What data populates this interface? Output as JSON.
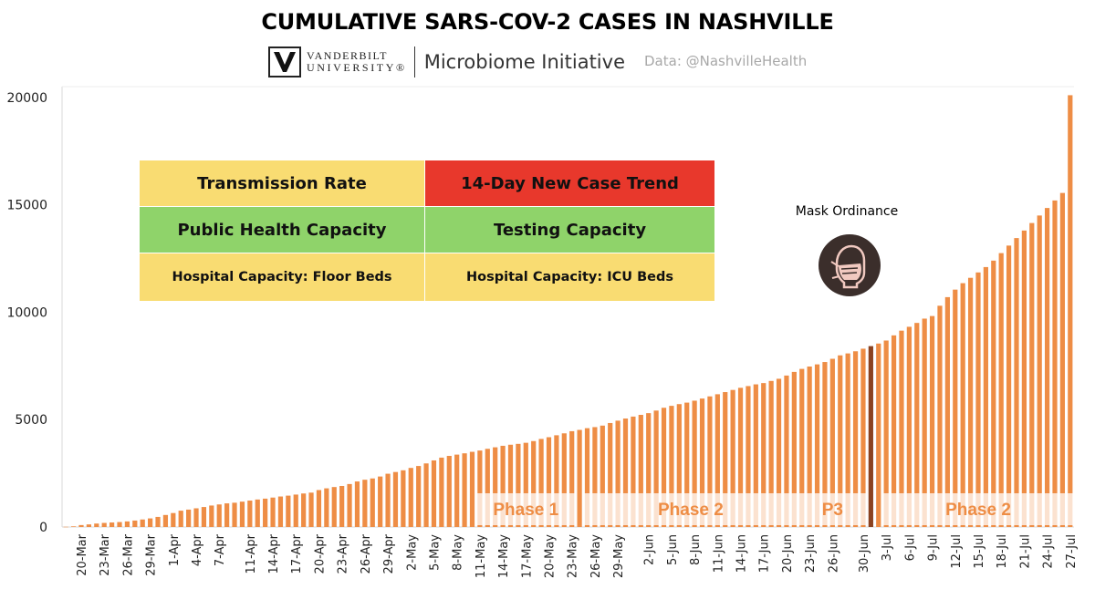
{
  "header": {
    "title": "CUMULATIVE SARS-COV-2 CASES IN NASHVILLE",
    "logo_line1": "VANDERBILT",
    "logo_line2": "UNIVERSITY®",
    "initiative": "Microbiome Initiative",
    "source": "Data: @NashvilleHealth"
  },
  "indicators": [
    {
      "label": "Transmission Rate",
      "status_color": "#f9dc72",
      "size": "big"
    },
    {
      "label": "14-Day New Case Trend",
      "status_color": "#e8382c",
      "size": "big"
    },
    {
      "label": "Public Health Capacity",
      "status_color": "#8fd36a",
      "size": "big"
    },
    {
      "label": "Testing Capacity",
      "status_color": "#8fd36a",
      "size": "big"
    },
    {
      "label": "Hospital Capacity: Floor Beds",
      "status_color": "#f9dc72",
      "size": "small"
    },
    {
      "label": "Hospital Capacity: ICU Beds",
      "status_color": "#f9dc72",
      "size": "small"
    }
  ],
  "annotation": {
    "label": "Mask Ordinance",
    "icon": "mask-icon",
    "date": "1-Jul"
  },
  "chart_data": {
    "type": "bar",
    "title": "CUMULATIVE SARS-COV-2 CASES IN NASHVILLE",
    "xlabel": "",
    "ylabel": "",
    "ylim": [
      0,
      20500
    ],
    "yticks": [
      0,
      5000,
      10000,
      15000,
      20000
    ],
    "bar_color": "#ee8d45",
    "highlight_color": "#8b4220",
    "highlight_date": "1-Jul",
    "start_date": "2020-03-18",
    "end_date": "2020-07-27",
    "x_tick_labels": [
      "20-Mar",
      "23-Mar",
      "26-Mar",
      "29-Mar",
      "1-Apr",
      "4-Apr",
      "7-Apr",
      "11-Apr",
      "14-Apr",
      "17-Apr",
      "20-Apr",
      "23-Apr",
      "26-Apr",
      "29-Apr",
      "2-May",
      "5-May",
      "8-May",
      "11-May",
      "14-May",
      "17-May",
      "20-May",
      "23-May",
      "26-May",
      "29-May",
      "2-Jun",
      "5-Jun",
      "8-Jun",
      "11-Jun",
      "14-Jun",
      "17-Jun",
      "20-Jun",
      "23-Jun",
      "26-Jun",
      "30-Jun",
      "3-Jul",
      "6-Jul",
      "9-Jul",
      "12-Jul",
      "15-Jul",
      "18-Jul",
      "21-Jul",
      "24-Jul",
      "27-Jul"
    ],
    "points": [
      [
        "18-Mar",
        10
      ],
      [
        "19-Mar",
        30
      ],
      [
        "20-Mar",
        90
      ],
      [
        "21-Mar",
        120
      ],
      [
        "22-Mar",
        160
      ],
      [
        "23-Mar",
        190
      ],
      [
        "24-Mar",
        210
      ],
      [
        "25-Mar",
        230
      ],
      [
        "26-Mar",
        260
      ],
      [
        "27-Mar",
        300
      ],
      [
        "28-Mar",
        350
      ],
      [
        "29-Mar",
        400
      ],
      [
        "30-Mar",
        470
      ],
      [
        "31-Mar",
        560
      ],
      [
        "1-Apr",
        650
      ],
      [
        "2-Apr",
        760
      ],
      [
        "3-Apr",
        810
      ],
      [
        "4-Apr",
        870
      ],
      [
        "5-Apr",
        930
      ],
      [
        "6-Apr",
        1000
      ],
      [
        "7-Apr",
        1050
      ],
      [
        "8-Apr",
        1100
      ],
      [
        "9-Apr",
        1130
      ],
      [
        "10-Apr",
        1180
      ],
      [
        "11-Apr",
        1230
      ],
      [
        "12-Apr",
        1280
      ],
      [
        "13-Apr",
        1320
      ],
      [
        "14-Apr",
        1370
      ],
      [
        "15-Apr",
        1420
      ],
      [
        "16-Apr",
        1460
      ],
      [
        "17-Apr",
        1510
      ],
      [
        "18-Apr",
        1560
      ],
      [
        "19-Apr",
        1600
      ],
      [
        "20-Apr",
        1720
      ],
      [
        "21-Apr",
        1800
      ],
      [
        "22-Apr",
        1860
      ],
      [
        "23-Apr",
        1910
      ],
      [
        "24-Apr",
        2000
      ],
      [
        "25-Apr",
        2120
      ],
      [
        "26-Apr",
        2200
      ],
      [
        "27-Apr",
        2260
      ],
      [
        "28-Apr",
        2350
      ],
      [
        "29-Apr",
        2480
      ],
      [
        "30-Apr",
        2560
      ],
      [
        "1-May",
        2640
      ],
      [
        "2-May",
        2750
      ],
      [
        "3-May",
        2840
      ],
      [
        "4-May",
        2960
      ],
      [
        "5-May",
        3100
      ],
      [
        "6-May",
        3230
      ],
      [
        "7-May",
        3310
      ],
      [
        "8-May",
        3370
      ],
      [
        "9-May",
        3430
      ],
      [
        "10-May",
        3500
      ],
      [
        "11-May",
        3560
      ],
      [
        "12-May",
        3640
      ],
      [
        "13-May",
        3710
      ],
      [
        "14-May",
        3780
      ],
      [
        "15-May",
        3830
      ],
      [
        "16-May",
        3870
      ],
      [
        "17-May",
        3920
      ],
      [
        "18-May",
        4000
      ],
      [
        "19-May",
        4100
      ],
      [
        "20-May",
        4180
      ],
      [
        "21-May",
        4270
      ],
      [
        "22-May",
        4360
      ],
      [
        "23-May",
        4460
      ],
      [
        "24-May",
        4520
      ],
      [
        "25-May",
        4600
      ],
      [
        "26-May",
        4650
      ],
      [
        "27-May",
        4720
      ],
      [
        "28-May",
        4840
      ],
      [
        "29-May",
        4950
      ],
      [
        "30-May",
        5050
      ],
      [
        "31-May",
        5140
      ],
      [
        "1-Jun",
        5220
      ],
      [
        "2-Jun",
        5300
      ],
      [
        "3-Jun",
        5420
      ],
      [
        "4-Jun",
        5550
      ],
      [
        "5-Jun",
        5640
      ],
      [
        "6-Jun",
        5720
      ],
      [
        "7-Jun",
        5790
      ],
      [
        "8-Jun",
        5880
      ],
      [
        "9-Jun",
        5980
      ],
      [
        "10-Jun",
        6080
      ],
      [
        "11-Jun",
        6180
      ],
      [
        "12-Jun",
        6280
      ],
      [
        "13-Jun",
        6380
      ],
      [
        "14-Jun",
        6480
      ],
      [
        "15-Jun",
        6560
      ],
      [
        "16-Jun",
        6640
      ],
      [
        "17-Jun",
        6700
      ],
      [
        "18-Jun",
        6800
      ],
      [
        "19-Jun",
        6900
      ],
      [
        "20-Jun",
        7050
      ],
      [
        "21-Jun",
        7220
      ],
      [
        "22-Jun",
        7360
      ],
      [
        "23-Jun",
        7470
      ],
      [
        "24-Jun",
        7570
      ],
      [
        "25-Jun",
        7680
      ],
      [
        "26-Jun",
        7830
      ],
      [
        "27-Jun",
        7990
      ],
      [
        "28-Jun",
        8080
      ],
      [
        "29-Jun",
        8180
      ],
      [
        "30-Jun",
        8300
      ],
      [
        "1-Jul",
        8420
      ],
      [
        "2-Jul",
        8540
      ],
      [
        "3-Jul",
        8680
      ],
      [
        "4-Jul",
        8920
      ],
      [
        "5-Jul",
        9140
      ],
      [
        "6-Jul",
        9320
      ],
      [
        "7-Jul",
        9500
      ],
      [
        "8-Jul",
        9700
      ],
      [
        "9-Jul",
        9820
      ],
      [
        "10-Jul",
        10300
      ],
      [
        "11-Jul",
        10700
      ],
      [
        "12-Jul",
        11050
      ],
      [
        "13-Jul",
        11350
      ],
      [
        "14-Jul",
        11600
      ],
      [
        "15-Jul",
        11850
      ],
      [
        "16-Jul",
        12100
      ],
      [
        "17-Jul",
        12400
      ],
      [
        "18-Jul",
        12750
      ],
      [
        "19-Jul",
        13100
      ],
      [
        "20-Jul",
        13450
      ],
      [
        "21-Jul",
        13800
      ],
      [
        "22-Jul",
        14150
      ],
      [
        "23-Jul",
        14500
      ],
      [
        "24-Jul",
        14850
      ],
      [
        "25-Jul",
        15200
      ],
      [
        "26-Jul",
        15550
      ],
      [
        "27-Jul",
        20100
      ]
    ],
    "phases": [
      {
        "label": "Phase 1",
        "start": "11-May",
        "end": "23-May"
      },
      {
        "label": "Phase 2",
        "start": "25-May",
        "end": "21-Jun"
      },
      {
        "label": "P3",
        "start": "22-Jun",
        "end": "30-Jun"
      },
      {
        "label": "Phase 2",
        "start": "3-Jul",
        "end": "27-Jul"
      }
    ]
  }
}
